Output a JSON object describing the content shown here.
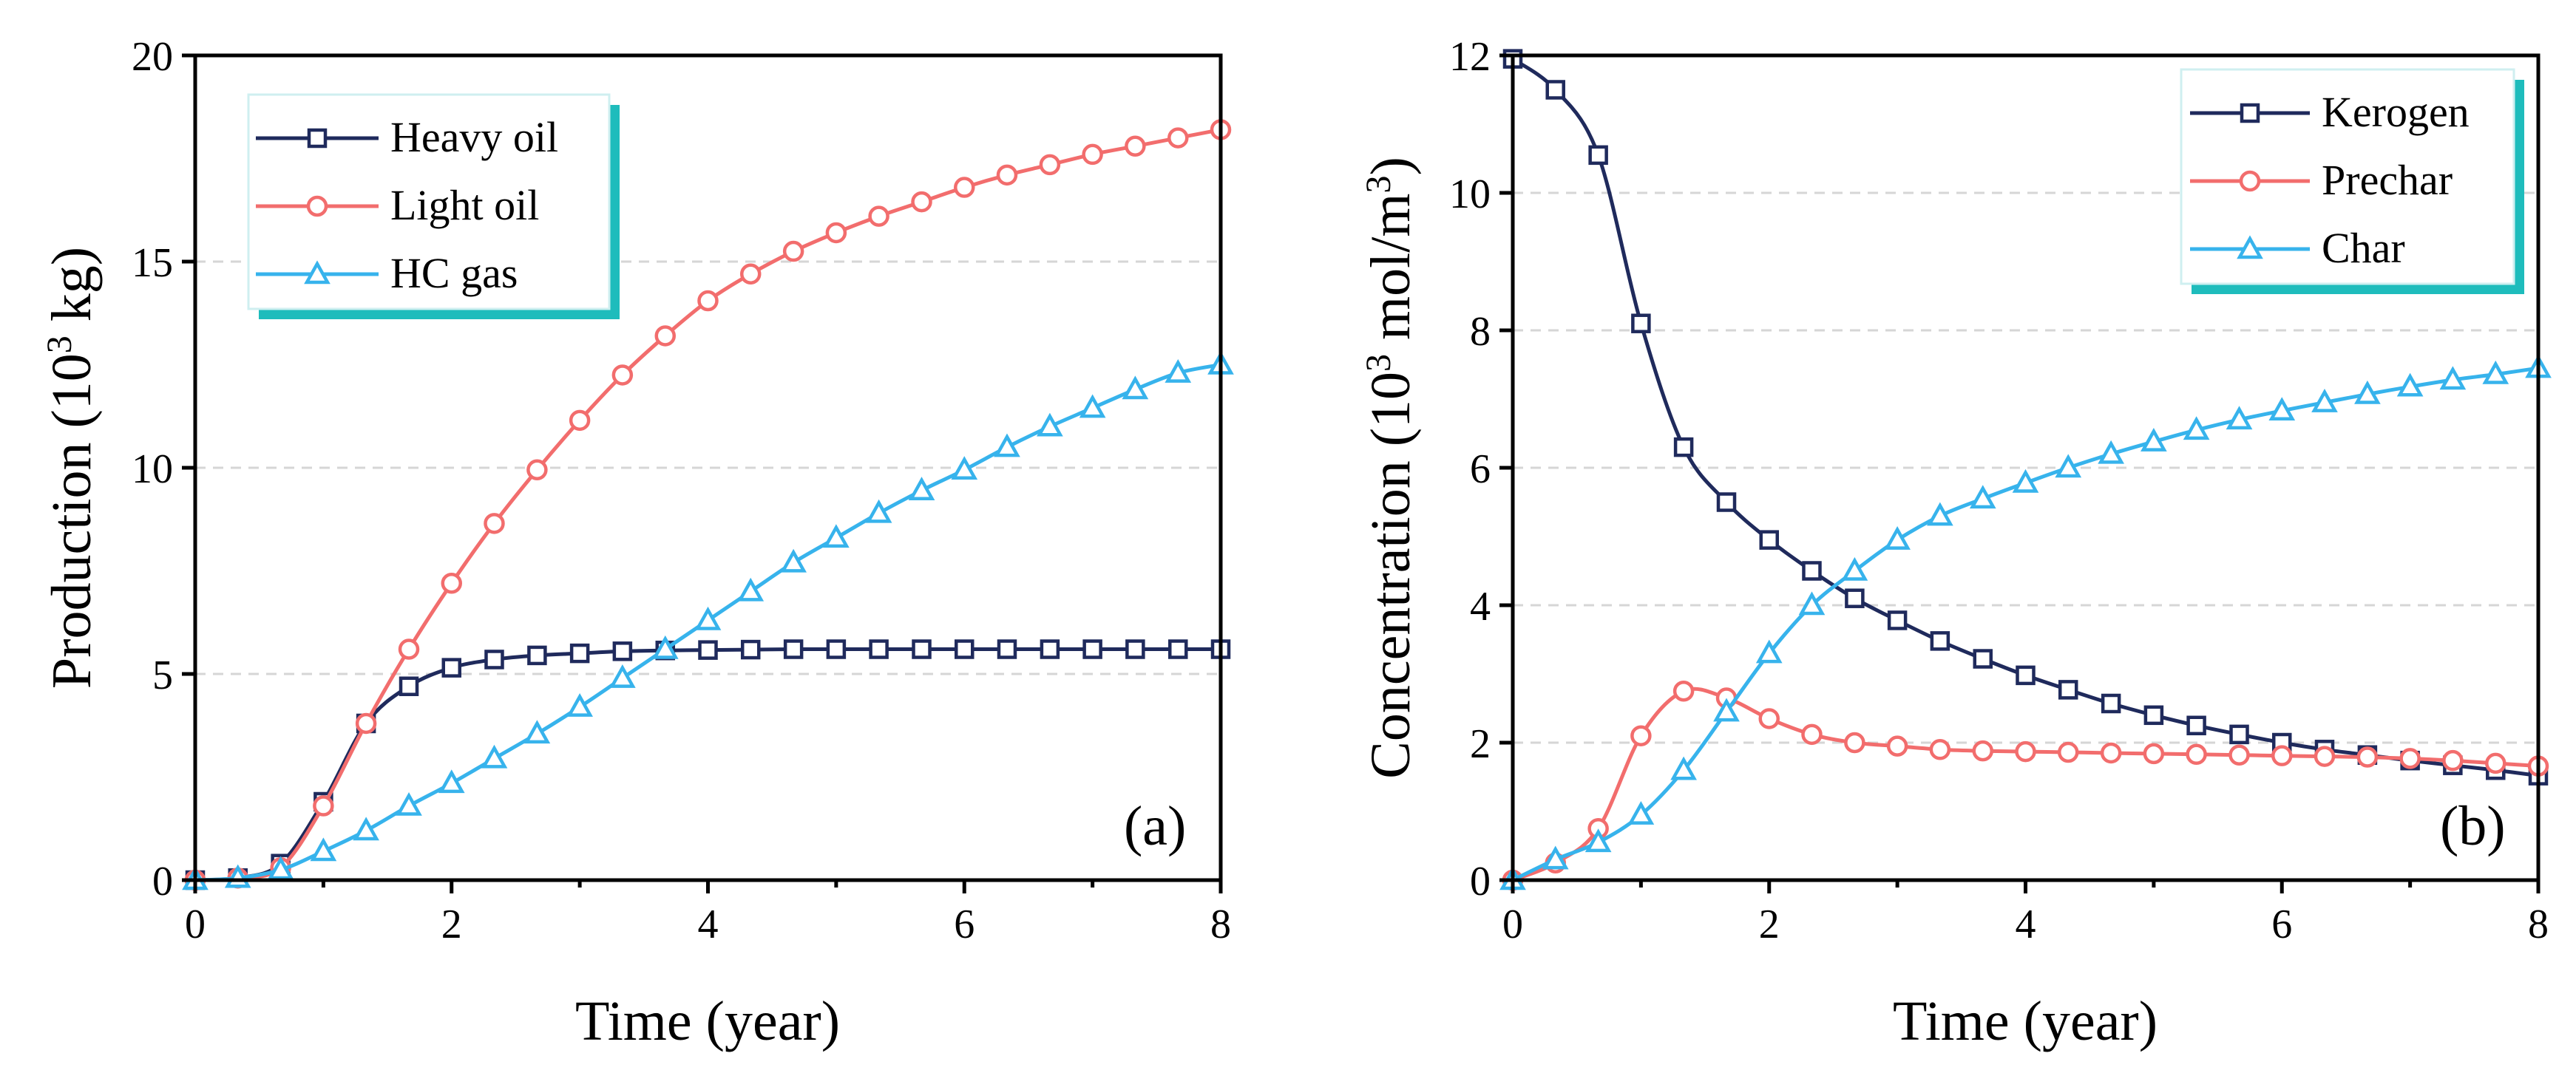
{
  "colors": {
    "kerogen_navy": "#1f2a5c",
    "light_red": "#f26d6d",
    "sky_blue": "#37b3ec",
    "legend_shadow": "#1ebcbc"
  },
  "chart_data": [
    {
      "type": "line",
      "panel_label": "(a)",
      "xlabel": "Time (year)",
      "ylabel_main": "Production (10",
      "ylabel_sup": "3",
      "ylabel_end": " kg)",
      "xlim": [
        0,
        8
      ],
      "ylim": [
        0,
        20
      ],
      "xticks": [
        "0",
        "2",
        "4",
        "6",
        "8"
      ],
      "yticks": [
        "0",
        "5",
        "10",
        "15",
        "20"
      ],
      "xtick_values": [
        0,
        2,
        4,
        6,
        8
      ],
      "ytick_values": [
        0,
        5,
        10,
        15,
        20
      ],
      "grid": "horizontal dashed",
      "legend_position": "top-left",
      "x": [
        0,
        0.333,
        0.667,
        1.0,
        1.333,
        1.667,
        2.0,
        2.333,
        2.667,
        3.0,
        3.333,
        3.667,
        4.0,
        4.333,
        4.667,
        5.0,
        5.333,
        5.667,
        6.0,
        6.333,
        6.667,
        7.0,
        7.333,
        7.667,
        8.0
      ],
      "series": [
        {
          "name": "Heavy oil",
          "marker": "square",
          "color": "#1f2a5c",
          "values": [
            0,
            0.05,
            0.4,
            1.9,
            3.8,
            4.7,
            5.15,
            5.35,
            5.45,
            5.5,
            5.55,
            5.57,
            5.58,
            5.59,
            5.6,
            5.6,
            5.6,
            5.6,
            5.6,
            5.6,
            5.6,
            5.6,
            5.6,
            5.6,
            5.6
          ]
        },
        {
          "name": "Light oil",
          "marker": "circle",
          "color": "#f26d6d",
          "values": [
            0,
            0.05,
            0.3,
            1.8,
            3.8,
            5.6,
            7.2,
            8.65,
            9.95,
            11.15,
            12.25,
            13.2,
            14.05,
            14.7,
            15.25,
            15.7,
            16.1,
            16.45,
            16.8,
            17.1,
            17.35,
            17.6,
            17.8,
            18.0,
            18.2
          ]
        },
        {
          "name": "HC gas",
          "marker": "triangle",
          "color": "#37b3ec",
          "values": [
            0,
            0.05,
            0.25,
            0.7,
            1.2,
            1.8,
            2.35,
            2.95,
            3.55,
            4.2,
            4.9,
            5.6,
            6.3,
            7.0,
            7.7,
            8.3,
            8.9,
            9.45,
            9.95,
            10.5,
            11.0,
            11.45,
            11.9,
            12.3,
            12.5
          ]
        }
      ]
    },
    {
      "type": "line",
      "panel_label": "(b)",
      "xlabel": "Time (year)",
      "ylabel_main": "Concentration (10",
      "ylabel_sup": "3",
      "ylabel_mid": " mol/m",
      "ylabel_sup2": "3",
      "ylabel_end": ")",
      "xlim": [
        0,
        8
      ],
      "ylim": [
        0,
        12
      ],
      "xticks": [
        "0",
        "2",
        "4",
        "6",
        "8"
      ],
      "yticks": [
        "0",
        "2",
        "4",
        "6",
        "8",
        "10",
        "12"
      ],
      "xtick_values": [
        0,
        2,
        4,
        6,
        8
      ],
      "ytick_values": [
        0,
        2,
        4,
        6,
        8,
        10,
        12
      ],
      "grid": "horizontal dashed",
      "legend_position": "top-right",
      "x": [
        0,
        0.333,
        0.667,
        1.0,
        1.333,
        1.667,
        2.0,
        2.333,
        2.667,
        3.0,
        3.333,
        3.667,
        4.0,
        4.333,
        4.667,
        5.0,
        5.333,
        5.667,
        6.0,
        6.333,
        6.667,
        7.0,
        7.333,
        7.667,
        8.0
      ],
      "series": [
        {
          "name": "Kerogen",
          "marker": "square",
          "color": "#1f2a5c",
          "values": [
            11.95,
            11.5,
            10.55,
            8.1,
            6.3,
            5.5,
            4.95,
            4.5,
            4.1,
            3.78,
            3.48,
            3.22,
            2.98,
            2.77,
            2.57,
            2.4,
            2.25,
            2.12,
            2.0,
            1.9,
            1.82,
            1.74,
            1.67,
            1.6,
            1.52
          ]
        },
        {
          "name": "Prechar",
          "marker": "circle",
          "color": "#f26d6d",
          "values": [
            0.0,
            0.25,
            0.75,
            2.1,
            2.75,
            2.65,
            2.35,
            2.12,
            2.0,
            1.95,
            1.9,
            1.88,
            1.87,
            1.86,
            1.85,
            1.84,
            1.83,
            1.82,
            1.81,
            1.8,
            1.79,
            1.77,
            1.74,
            1.7,
            1.66
          ]
        },
        {
          "name": "Char",
          "marker": "triangle",
          "color": "#37b3ec",
          "values": [
            0.0,
            0.3,
            0.55,
            0.95,
            1.6,
            2.45,
            3.3,
            4.0,
            4.5,
            4.95,
            5.3,
            5.55,
            5.78,
            6.0,
            6.2,
            6.38,
            6.55,
            6.7,
            6.83,
            6.95,
            7.07,
            7.18,
            7.28,
            7.36,
            7.45
          ]
        }
      ]
    }
  ]
}
